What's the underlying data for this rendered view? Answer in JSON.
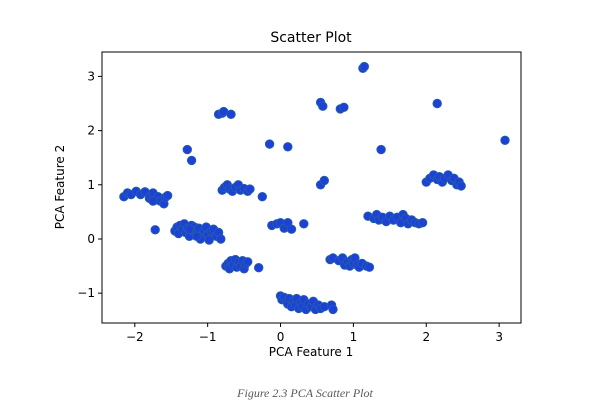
{
  "chart_data": {
    "type": "scatter",
    "title": "Scatter Plot",
    "xlabel": "PCA Feature 1",
    "ylabel": "PCA Feature 2",
    "xlim": [
      -2.45,
      3.3
    ],
    "ylim": [
      -1.55,
      3.45
    ],
    "xticks": [
      -2,
      -1,
      0,
      1,
      2,
      3
    ],
    "xtick_labels": [
      "−2",
      "−1",
      "0",
      "1",
      "2",
      "3"
    ],
    "yticks": [
      -1,
      0,
      1,
      2,
      3
    ],
    "ytick_labels": [
      "−1",
      "0",
      "1",
      "2",
      "3"
    ],
    "grid": false,
    "marker_fill": "#1f3fd9",
    "marker_edge": "#1f5fa8",
    "points": [
      [
        -2.15,
        0.78
      ],
      [
        -2.1,
        0.85
      ],
      [
        -2.05,
        0.82
      ],
      [
        -1.98,
        0.88
      ],
      [
        -1.92,
        0.82
      ],
      [
        -1.86,
        0.87
      ],
      [
        -1.8,
        0.75
      ],
      [
        -1.78,
        0.8
      ],
      [
        -1.75,
        0.85
      ],
      [
        -1.72,
        0.72
      ],
      [
        -1.68,
        0.78
      ],
      [
        -1.65,
        0.7
      ],
      [
        -1.6,
        0.65
      ],
      [
        -1.58,
        0.77
      ],
      [
        -1.55,
        0.8
      ],
      [
        -1.75,
        0.7
      ],
      [
        -1.72,
        0.17
      ],
      [
        -1.45,
        0.15
      ],
      [
        -1.42,
        0.22
      ],
      [
        -1.4,
        0.1
      ],
      [
        -1.38,
        0.25
      ],
      [
        -1.35,
        0.18
      ],
      [
        -1.32,
        0.28
      ],
      [
        -1.3,
        0.12
      ],
      [
        -1.28,
        0.2
      ],
      [
        -1.25,
        0.05
      ],
      [
        -1.22,
        0.25
      ],
      [
        -1.2,
        0.15
      ],
      [
        -1.18,
        0.22
      ],
      [
        -1.15,
        0.1
      ],
      [
        -1.12,
        0.2
      ],
      [
        -1.1,
        0.0
      ],
      [
        -1.05,
        0.15
      ],
      [
        -1.02,
        0.22
      ],
      [
        -1.0,
        0.08
      ],
      [
        -0.98,
        -0.02
      ],
      [
        -0.95,
        0.15
      ],
      [
        -0.92,
        0.18
      ],
      [
        -0.88,
        0.05
      ],
      [
        -0.85,
        0.12
      ],
      [
        -0.82,
        0.0
      ],
      [
        -1.25,
        0.18
      ],
      [
        -1.15,
        0.05
      ],
      [
        -1.28,
        1.65
      ],
      [
        -1.22,
        1.45
      ],
      [
        -0.85,
        2.3
      ],
      [
        -0.8,
        2.32
      ],
      [
        -0.78,
        2.35
      ],
      [
        -0.68,
        2.3
      ],
      [
        -0.8,
        0.9
      ],
      [
        -0.77,
        0.95
      ],
      [
        -0.73,
        1.0
      ],
      [
        -0.7,
        0.92
      ],
      [
        -0.66,
        0.88
      ],
      [
        -0.62,
        0.95
      ],
      [
        -0.58,
        1.0
      ],
      [
        -0.55,
        0.9
      ],
      [
        -0.5,
        0.93
      ],
      [
        -0.45,
        0.88
      ],
      [
        -0.42,
        0.92
      ],
      [
        -0.25,
        0.78
      ],
      [
        -0.75,
        -0.5
      ],
      [
        -0.72,
        -0.45
      ],
      [
        -0.7,
        -0.55
      ],
      [
        -0.68,
        -0.4
      ],
      [
        -0.65,
        -0.48
      ],
      [
        -0.62,
        -0.38
      ],
      [
        -0.6,
        -0.52
      ],
      [
        -0.58,
        -0.43
      ],
      [
        -0.55,
        -0.5
      ],
      [
        -0.52,
        -0.4
      ],
      [
        -0.5,
        -0.55
      ],
      [
        -0.48,
        -0.46
      ],
      [
        -0.45,
        -0.42
      ],
      [
        -0.3,
        -0.53
      ],
      [
        -0.15,
        1.75
      ],
      [
        0.1,
        1.7
      ],
      [
        -0.12,
        0.25
      ],
      [
        -0.05,
        0.28
      ],
      [
        0.0,
        0.3
      ],
      [
        0.05,
        0.2
      ],
      [
        0.1,
        0.3
      ],
      [
        0.15,
        0.18
      ],
      [
        0.32,
        0.28
      ],
      [
        0.0,
        -1.05
      ],
      [
        0.02,
        -1.12
      ],
      [
        0.05,
        -1.08
      ],
      [
        0.08,
        -1.15
      ],
      [
        0.1,
        -1.2
      ],
      [
        0.12,
        -1.1
      ],
      [
        0.15,
        -1.25
      ],
      [
        0.18,
        -1.15
      ],
      [
        0.2,
        -1.22
      ],
      [
        0.22,
        -1.1
      ],
      [
        0.25,
        -1.28
      ],
      [
        0.28,
        -1.18
      ],
      [
        0.3,
        -1.25
      ],
      [
        0.32,
        -1.12
      ],
      [
        0.35,
        -1.3
      ],
      [
        0.38,
        -1.2
      ],
      [
        0.42,
        -1.25
      ],
      [
        0.45,
        -1.15
      ],
      [
        0.48,
        -1.3
      ],
      [
        0.52,
        -1.22
      ],
      [
        0.55,
        -1.28
      ],
      [
        0.6,
        -1.25
      ],
      [
        0.7,
        -1.22
      ],
      [
        0.72,
        -1.3
      ],
      [
        0.55,
        2.52
      ],
      [
        0.58,
        2.45
      ],
      [
        0.82,
        2.4
      ],
      [
        0.87,
        2.43
      ],
      [
        0.55,
        1.0
      ],
      [
        0.6,
        1.08
      ],
      [
        0.68,
        -0.38
      ],
      [
        0.72,
        -0.35
      ],
      [
        0.8,
        -0.4
      ],
      [
        0.85,
        -0.35
      ],
      [
        0.88,
        -0.48
      ],
      [
        0.92,
        -0.42
      ],
      [
        0.95,
        -0.5
      ],
      [
        0.98,
        -0.38
      ],
      [
        1.0,
        -0.45
      ],
      [
        1.02,
        -0.35
      ],
      [
        1.05,
        -0.48
      ],
      [
        1.08,
        -0.52
      ],
      [
        1.12,
        -0.45
      ],
      [
        1.18,
        -0.5
      ],
      [
        1.22,
        -0.52
      ],
      [
        1.13,
        3.15
      ],
      [
        1.15,
        3.18
      ],
      [
        1.38,
        1.65
      ],
      [
        1.2,
        0.42
      ],
      [
        1.28,
        0.38
      ],
      [
        1.32,
        0.45
      ],
      [
        1.35,
        0.35
      ],
      [
        1.4,
        0.4
      ],
      [
        1.45,
        0.32
      ],
      [
        1.5,
        0.42
      ],
      [
        1.55,
        0.35
      ],
      [
        1.6,
        0.4
      ],
      [
        1.65,
        0.3
      ],
      [
        1.68,
        0.45
      ],
      [
        1.72,
        0.38
      ],
      [
        1.75,
        0.28
      ],
      [
        1.8,
        0.35
      ],
      [
        1.85,
        0.3
      ],
      [
        1.9,
        0.28
      ],
      [
        1.95,
        0.3
      ],
      [
        2.0,
        1.05
      ],
      [
        2.05,
        1.12
      ],
      [
        2.1,
        1.18
      ],
      [
        2.15,
        1.1
      ],
      [
        2.18,
        1.15
      ],
      [
        2.22,
        1.05
      ],
      [
        2.25,
        1.12
      ],
      [
        2.3,
        1.18
      ],
      [
        2.35,
        1.08
      ],
      [
        2.38,
        1.12
      ],
      [
        2.42,
        1.0
      ],
      [
        2.45,
        1.05
      ],
      [
        2.48,
        0.98
      ],
      [
        2.15,
        2.5
      ],
      [
        3.08,
        1.82
      ]
    ]
  },
  "caption": "Figure 2.3 PCA Scatter Plot"
}
